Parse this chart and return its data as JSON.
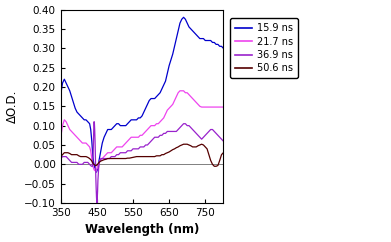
{
  "xlabel": "Wavelength (nm)",
  "ylabel": "ΔO.D.",
  "xlim": [
    350,
    800
  ],
  "ylim": [
    -0.1,
    0.4
  ],
  "yticks": [
    -0.1,
    -0.05,
    0.0,
    0.05,
    0.1,
    0.15,
    0.2,
    0.25,
    0.3,
    0.35,
    0.4
  ],
  "xticks": [
    350,
    450,
    550,
    650,
    750
  ],
  "legend_labels": [
    "15.9 ns",
    "21.7 ns",
    "36.9 ns",
    "50.6 ns"
  ],
  "colors": [
    "#0000cc",
    "#ee44ee",
    "#9922cc",
    "#550000"
  ],
  "series_159": {
    "x": [
      350,
      355,
      360,
      365,
      370,
      375,
      380,
      385,
      390,
      395,
      400,
      405,
      410,
      415,
      420,
      425,
      430,
      433,
      436,
      439,
      441,
      443,
      445,
      447,
      449,
      451,
      453,
      456,
      460,
      465,
      470,
      475,
      480,
      485,
      490,
      495,
      500,
      505,
      510,
      515,
      520,
      525,
      530,
      535,
      540,
      545,
      550,
      555,
      560,
      565,
      570,
      575,
      580,
      585,
      590,
      595,
      600,
      605,
      610,
      615,
      620,
      625,
      630,
      635,
      640,
      645,
      650,
      655,
      660,
      665,
      670,
      675,
      680,
      685,
      690,
      695,
      700,
      705,
      710,
      715,
      720,
      725,
      730,
      735,
      740,
      745,
      750,
      755,
      760,
      765,
      770,
      775,
      780,
      785,
      790,
      795,
      800
    ],
    "y": [
      0.18,
      0.21,
      0.22,
      0.21,
      0.2,
      0.19,
      0.175,
      0.16,
      0.145,
      0.135,
      0.13,
      0.125,
      0.12,
      0.115,
      0.115,
      0.11,
      0.105,
      0.09,
      0.06,
      0.02,
      0.005,
      -0.005,
      -0.01,
      -0.015,
      -0.02,
      -0.015,
      -0.01,
      0.01,
      0.03,
      0.055,
      0.07,
      0.08,
      0.09,
      0.09,
      0.09,
      0.095,
      0.1,
      0.105,
      0.105,
      0.1,
      0.1,
      0.1,
      0.1,
      0.105,
      0.11,
      0.115,
      0.115,
      0.115,
      0.115,
      0.12,
      0.12,
      0.125,
      0.135,
      0.145,
      0.155,
      0.165,
      0.17,
      0.17,
      0.17,
      0.175,
      0.18,
      0.185,
      0.195,
      0.205,
      0.215,
      0.235,
      0.255,
      0.27,
      0.285,
      0.305,
      0.325,
      0.345,
      0.365,
      0.375,
      0.38,
      0.375,
      0.365,
      0.355,
      0.35,
      0.345,
      0.34,
      0.335,
      0.33,
      0.325,
      0.325,
      0.325,
      0.32,
      0.32,
      0.32,
      0.32,
      0.315,
      0.315,
      0.31,
      0.31,
      0.305,
      0.305,
      0.3
    ]
  },
  "series_217": {
    "x": [
      350,
      355,
      360,
      365,
      370,
      375,
      380,
      385,
      390,
      395,
      400,
      405,
      410,
      415,
      420,
      425,
      430,
      433,
      436,
      439,
      441,
      443,
      445,
      447,
      449,
      451,
      453,
      456,
      460,
      465,
      470,
      475,
      480,
      485,
      490,
      495,
      500,
      505,
      510,
      515,
      520,
      525,
      530,
      535,
      540,
      545,
      550,
      555,
      560,
      565,
      570,
      575,
      580,
      585,
      590,
      595,
      600,
      605,
      610,
      615,
      620,
      625,
      630,
      635,
      640,
      645,
      650,
      655,
      660,
      665,
      670,
      675,
      680,
      685,
      690,
      695,
      700,
      705,
      710,
      715,
      720,
      725,
      730,
      735,
      740,
      745,
      750,
      755,
      760,
      765,
      770,
      775,
      780,
      785,
      790,
      795,
      800
    ],
    "y": [
      0.07,
      0.1,
      0.115,
      0.11,
      0.1,
      0.09,
      0.085,
      0.08,
      0.075,
      0.07,
      0.065,
      0.06,
      0.055,
      0.055,
      0.055,
      0.05,
      0.045,
      0.035,
      0.015,
      -0.005,
      -0.01,
      -0.015,
      -0.015,
      -0.02,
      -0.015,
      -0.01,
      -0.005,
      0.005,
      0.01,
      0.015,
      0.02,
      0.025,
      0.03,
      0.03,
      0.03,
      0.035,
      0.04,
      0.045,
      0.045,
      0.045,
      0.045,
      0.05,
      0.055,
      0.06,
      0.065,
      0.07,
      0.07,
      0.07,
      0.07,
      0.07,
      0.075,
      0.075,
      0.08,
      0.085,
      0.09,
      0.095,
      0.1,
      0.1,
      0.1,
      0.105,
      0.105,
      0.11,
      0.115,
      0.12,
      0.13,
      0.14,
      0.145,
      0.15,
      0.155,
      0.165,
      0.175,
      0.185,
      0.19,
      0.19,
      0.19,
      0.185,
      0.185,
      0.18,
      0.175,
      0.17,
      0.165,
      0.16,
      0.155,
      0.15,
      0.148,
      0.148,
      0.148,
      0.148,
      0.148,
      0.148,
      0.148,
      0.148,
      0.148,
      0.148,
      0.148,
      0.148,
      0.148
    ]
  },
  "series_369": {
    "x": [
      350,
      355,
      360,
      365,
      370,
      375,
      380,
      385,
      390,
      395,
      400,
      405,
      410,
      415,
      420,
      425,
      430,
      435,
      438,
      440,
      441,
      442,
      443,
      444,
      445,
      446,
      447,
      448,
      449,
      450,
      451,
      452,
      453,
      455,
      458,
      461,
      465,
      470,
      475,
      480,
      485,
      490,
      495,
      500,
      505,
      510,
      515,
      520,
      525,
      530,
      535,
      540,
      545,
      550,
      555,
      560,
      565,
      570,
      575,
      580,
      585,
      590,
      595,
      600,
      605,
      610,
      615,
      620,
      625,
      630,
      635,
      640,
      645,
      650,
      655,
      660,
      665,
      670,
      675,
      680,
      685,
      690,
      695,
      700,
      705,
      710,
      715,
      720,
      725,
      730,
      735,
      740,
      745,
      750,
      755,
      760,
      765,
      770,
      775,
      780,
      785,
      790,
      795,
      800
    ],
    "y": [
      0.015,
      0.02,
      0.02,
      0.02,
      0.015,
      0.01,
      0.005,
      0.005,
      0.005,
      0.005,
      0.0,
      0.0,
      0.0,
      0.005,
      0.005,
      0.005,
      0.0,
      -0.005,
      -0.005,
      0.035,
      0.075,
      0.11,
      0.11,
      0.09,
      0.06,
      0.02,
      -0.03,
      -0.06,
      -0.085,
      -0.1,
      -0.09,
      -0.07,
      -0.04,
      -0.01,
      0.01,
      0.015,
      0.015,
      0.015,
      0.015,
      0.015,
      0.015,
      0.02,
      0.02,
      0.02,
      0.025,
      0.025,
      0.03,
      0.03,
      0.03,
      0.03,
      0.035,
      0.035,
      0.035,
      0.04,
      0.04,
      0.04,
      0.04,
      0.045,
      0.045,
      0.045,
      0.05,
      0.05,
      0.055,
      0.06,
      0.065,
      0.07,
      0.07,
      0.07,
      0.075,
      0.075,
      0.08,
      0.08,
      0.085,
      0.085,
      0.085,
      0.085,
      0.085,
      0.085,
      0.09,
      0.095,
      0.1,
      0.105,
      0.105,
      0.1,
      0.1,
      0.095,
      0.09,
      0.085,
      0.08,
      0.075,
      0.07,
      0.065,
      0.07,
      0.075,
      0.08,
      0.085,
      0.09,
      0.09,
      0.085,
      0.08,
      0.075,
      0.07,
      0.065,
      0.06
    ]
  },
  "series_506": {
    "x": [
      350,
      355,
      360,
      365,
      370,
      375,
      380,
      385,
      390,
      395,
      400,
      405,
      410,
      415,
      420,
      425,
      430,
      435,
      438,
      440,
      442,
      444,
      446,
      448,
      450,
      452,
      454,
      456,
      460,
      465,
      470,
      475,
      480,
      485,
      490,
      495,
      500,
      505,
      510,
      515,
      520,
      525,
      530,
      535,
      540,
      545,
      550,
      555,
      560,
      565,
      570,
      575,
      580,
      585,
      590,
      595,
      600,
      605,
      610,
      615,
      620,
      625,
      630,
      635,
      640,
      645,
      650,
      655,
      660,
      665,
      670,
      675,
      680,
      685,
      690,
      695,
      700,
      705,
      710,
      715,
      720,
      725,
      730,
      735,
      740,
      745,
      750,
      755,
      760,
      765,
      770,
      775,
      780,
      785,
      790,
      795,
      800
    ],
    "y": [
      0.02,
      0.025,
      0.03,
      0.03,
      0.03,
      0.028,
      0.025,
      0.025,
      0.025,
      0.025,
      0.022,
      0.02,
      0.02,
      0.02,
      0.02,
      0.018,
      0.015,
      0.01,
      0.005,
      0.002,
      0.0,
      -0.002,
      -0.003,
      -0.003,
      -0.002,
      0.0,
      0.003,
      0.005,
      0.008,
      0.01,
      0.012,
      0.013,
      0.015,
      0.015,
      0.015,
      0.015,
      0.015,
      0.015,
      0.015,
      0.015,
      0.015,
      0.015,
      0.015,
      0.016,
      0.016,
      0.017,
      0.018,
      0.019,
      0.02,
      0.02,
      0.02,
      0.02,
      0.02,
      0.02,
      0.02,
      0.02,
      0.02,
      0.02,
      0.02,
      0.022,
      0.022,
      0.022,
      0.025,
      0.025,
      0.028,
      0.03,
      0.032,
      0.035,
      0.038,
      0.04,
      0.043,
      0.045,
      0.048,
      0.05,
      0.052,
      0.052,
      0.052,
      0.05,
      0.048,
      0.045,
      0.045,
      0.045,
      0.048,
      0.05,
      0.052,
      0.05,
      0.045,
      0.04,
      0.025,
      0.01,
      0.0,
      -0.005,
      -0.005,
      -0.003,
      0.01,
      0.025,
      0.03
    ]
  }
}
